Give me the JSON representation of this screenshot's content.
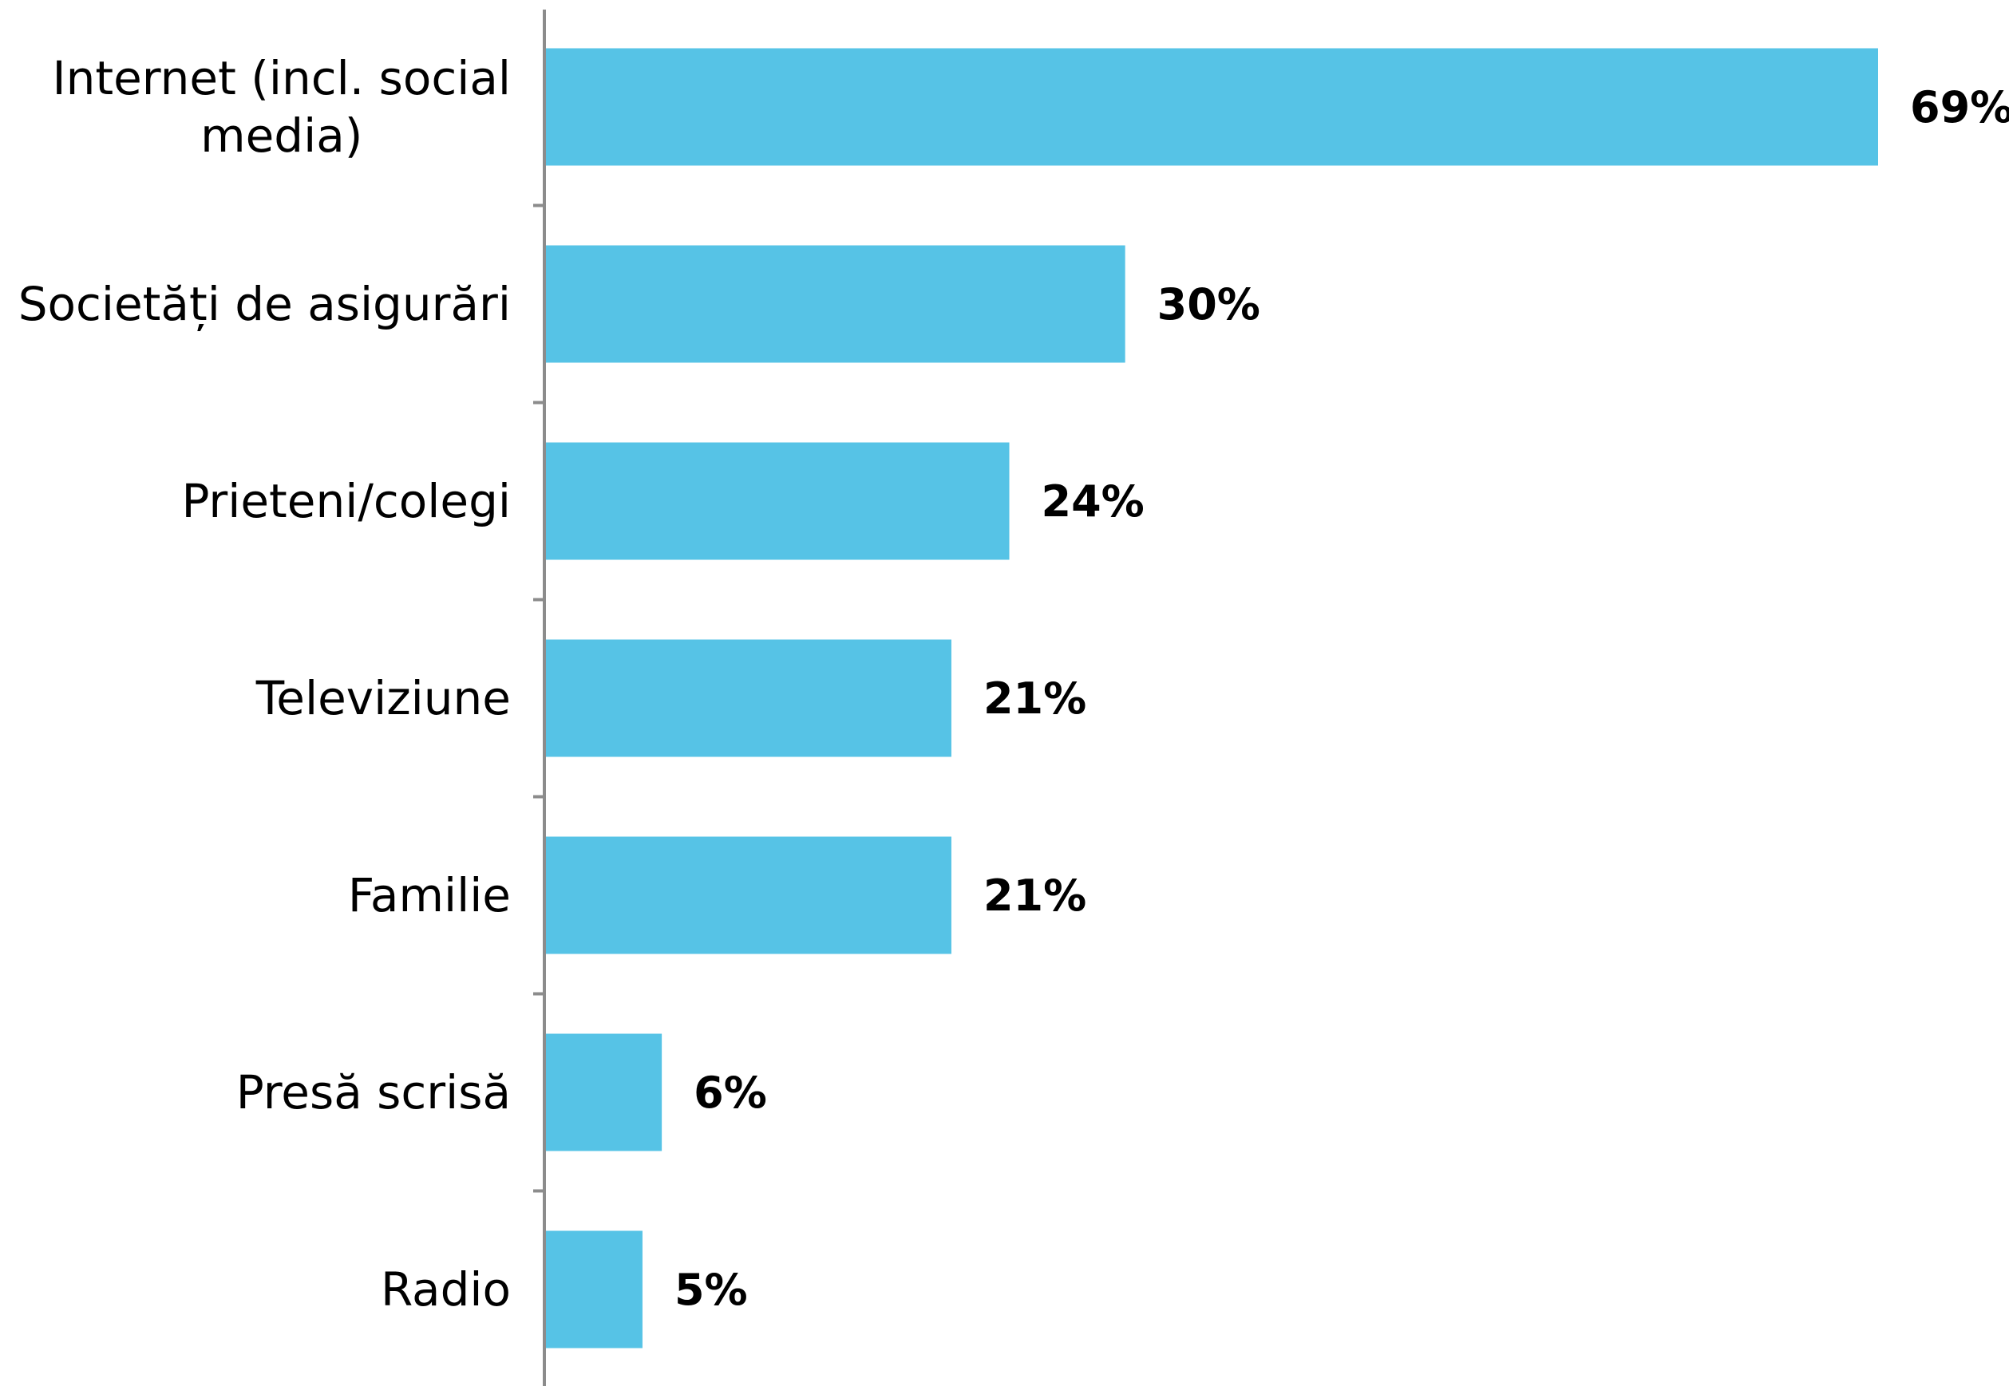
{
  "chart_data": {
    "type": "bar",
    "orientation": "horizontal",
    "categories": [
      "Internet (incl. social media)",
      "Societăți de asigurări",
      "Prieteni/colegi",
      "Televiziune",
      "Familie",
      "Presă scrisă",
      "Radio"
    ],
    "category_lines": [
      [
        "Internet (incl. social",
        "media)"
      ],
      [
        "Societăți de asigurări"
      ],
      [
        "Prieteni/colegi"
      ],
      [
        "Televiziune"
      ],
      [
        "Familie"
      ],
      [
        "Presă scrisă"
      ],
      [
        "Radio"
      ]
    ],
    "values": [
      69,
      30,
      24,
      21,
      21,
      6,
      5
    ],
    "value_labels": [
      "69%",
      "30%",
      "24%",
      "21%",
      "21%",
      "6%",
      "5%"
    ],
    "unit": "%",
    "title": "",
    "xlabel": "",
    "ylabel": "",
    "xlim": [
      0,
      70
    ],
    "grid": false,
    "legend": "none",
    "bar_color": "#56C3E6",
    "axis_color": "#8C8C8C"
  }
}
